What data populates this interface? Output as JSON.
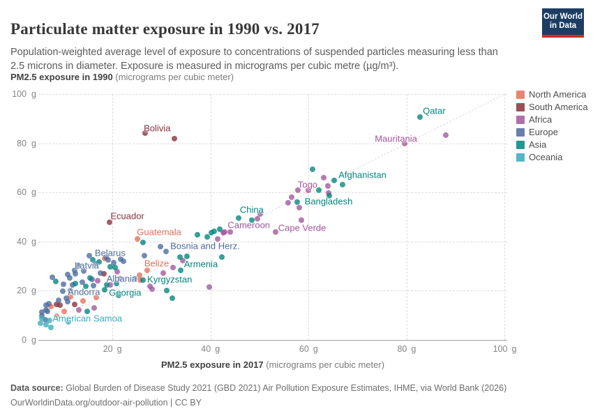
{
  "header": {
    "title": "Particulate matter exposure in 1990 vs. 2017",
    "subtitle": "Population-weighted average level of exposure to concentrations of suspended particles measuring less than 2.5 microns in diameter. Exposure is measured in micrograms per cubic metre (µg/m³).",
    "logo_line1": "Our World",
    "logo_line2": "in Data",
    "logo_bg_color": "#1d3d63",
    "logo_bar_color": "#d42b20"
  },
  "y_axis_title": {
    "bold": "PM2.5 exposure in 1990",
    "unit": " (micrograms per cubic meter)"
  },
  "x_axis_title": {
    "bold": "PM2.5 exposure in 2017",
    "unit": " (micrograms per cubic meter)"
  },
  "legend": [
    {
      "label": "North America",
      "color": "#E56E5A"
    },
    {
      "label": "South America",
      "color": "#883039"
    },
    {
      "label": "Africa",
      "color": "#A2559C"
    },
    {
      "label": "Europe",
      "color": "#4C6A9C"
    },
    {
      "label": "Asia",
      "color": "#00847E"
    },
    {
      "label": "Oceania",
      "color": "#38AABA"
    }
  ],
  "footer": {
    "source_label": "Data source:",
    "source_text": " Global Burden of Disease Study 2021 (GBD 2021) Air Pollution Exposure Estimates, IHME, via World Bank (2026)",
    "license": "OurWorldinData.org/outdoor-air-pollution | CC BY"
  },
  "chart_data": {
    "type": "scatter",
    "title": "Particulate matter exposure in 1990 vs. 2017",
    "xlabel": "PM2.5 exposure in 2017 (micrograms per cubic meter)",
    "ylabel": "PM2.5 exposure in 1990 (micrograms per cubic meter)",
    "x_domain": [
      4.9,
      100.5
    ],
    "y_domain": [
      0,
      100
    ],
    "x_ticks": [
      20,
      40,
      60,
      80,
      100
    ],
    "y_ticks": [
      0,
      20,
      40,
      60,
      80,
      100
    ],
    "tick_unit": "g",
    "grid": true,
    "diagonal_reference_line": true,
    "legend_position": "right",
    "series": [
      {
        "name": "North America",
        "color": "#E56E5A",
        "points": [
          [
            25.1,
            41.1
          ],
          [
            27.1,
            28.3
          ],
          [
            25.5,
            26.3
          ],
          [
            25.7,
            24.4
          ],
          [
            18.4,
            33.1
          ],
          [
            11.5,
            17.6
          ],
          [
            16.7,
            17.3
          ],
          [
            14,
            16
          ],
          [
            7.5,
            13.6
          ],
          [
            10.1,
            11.6
          ],
          [
            8.6,
            9.6
          ]
        ]
      },
      {
        "name": "South America",
        "color": "#883039",
        "points": [
          [
            26.7,
            84.1
          ],
          [
            32.7,
            81.9
          ],
          [
            19.4,
            47.9
          ],
          [
            18.3,
            26.9
          ],
          [
            8.6,
            14.4
          ],
          [
            9.3,
            14.2
          ],
          [
            12.3,
            14.4
          ]
        ]
      },
      {
        "name": "Africa",
        "color": "#A2559C",
        "points": [
          [
            79.6,
            79.9
          ],
          [
            88,
            83.3
          ],
          [
            63.1,
            66
          ],
          [
            64,
            62.6
          ],
          [
            57.8,
            60.9
          ],
          [
            60,
            60.9
          ],
          [
            64.1,
            59.8
          ],
          [
            56.5,
            58.1
          ],
          [
            55.8,
            55.8
          ],
          [
            58.1,
            53.8
          ],
          [
            58.6,
            48.7
          ],
          [
            50.2,
            51.3
          ],
          [
            49.6,
            49.3
          ],
          [
            53.3,
            43.9
          ],
          [
            42.9,
            43.9
          ],
          [
            44,
            43.9
          ],
          [
            42.6,
            43.6
          ],
          [
            41.4,
            41.1
          ],
          [
            34.3,
            32.3
          ],
          [
            32.4,
            29.5
          ],
          [
            30.4,
            27.2
          ],
          [
            27.7,
            21.8
          ],
          [
            28.1,
            20.7
          ],
          [
            39.7,
            21.5
          ],
          [
            21,
            27.8
          ],
          [
            21.6,
            24.9
          ],
          [
            17,
            24
          ],
          [
            19.5,
            22.5
          ],
          [
            16.3,
            13
          ],
          [
            13.2,
            12.2
          ]
        ]
      },
      {
        "name": "Europe",
        "color": "#4C6A9C",
        "points": [
          [
            30.9,
            36
          ],
          [
            29.8,
            38
          ],
          [
            26.5,
            34.3
          ],
          [
            15.3,
            34.2
          ],
          [
            16.6,
            30.9
          ],
          [
            18.7,
            33.7
          ],
          [
            19.1,
            32.6
          ],
          [
            20.3,
            31.4
          ],
          [
            21.7,
            32.9
          ],
          [
            22.3,
            31.9
          ],
          [
            17.6,
            27.2
          ],
          [
            12.3,
            28.3
          ],
          [
            12.5,
            26.9
          ],
          [
            10.9,
            26.6
          ],
          [
            11.3,
            25.2
          ],
          [
            15.9,
            24.6
          ],
          [
            13.9,
            23.5
          ],
          [
            10,
            22.7
          ],
          [
            11.9,
            22.4
          ],
          [
            16.2,
            22.1
          ],
          [
            24.5,
            24.9
          ],
          [
            11.4,
            20.1
          ],
          [
            7.7,
            25.5
          ],
          [
            9.9,
            19.8
          ],
          [
            10.6,
            17
          ],
          [
            10.9,
            15.6
          ],
          [
            9,
            16.1
          ],
          [
            7,
            14.7
          ],
          [
            6.5,
            14.1
          ],
          [
            6.8,
            11.6
          ],
          [
            5.6,
            11.3
          ],
          [
            6.4,
            12.2
          ],
          [
            5.6,
            9.9
          ],
          [
            6.3,
            8.2
          ],
          [
            13,
            30.2
          ],
          [
            14.2,
            28.1
          ]
        ]
      },
      {
        "name": "Asia",
        "color": "#00847E",
        "points": [
          [
            82.7,
            90.6
          ],
          [
            60.8,
            69.4
          ],
          [
            65.2,
            64.8
          ],
          [
            66.9,
            63.2
          ],
          [
            62.1,
            60.9
          ],
          [
            64.2,
            58.6
          ],
          [
            57.7,
            56.1
          ],
          [
            45.7,
            49.6
          ],
          [
            48.5,
            48.7
          ],
          [
            41.9,
            45
          ],
          [
            40.8,
            44.2
          ],
          [
            40.2,
            43.6
          ],
          [
            39.3,
            41.9
          ],
          [
            37.3,
            42.8
          ],
          [
            26.2,
            39.7
          ],
          [
            42.3,
            33.7
          ],
          [
            35.2,
            34
          ],
          [
            33.8,
            33.7
          ],
          [
            33.9,
            28.3
          ],
          [
            31.1,
            20.1
          ],
          [
            32.2,
            17
          ],
          [
            26.2,
            24.4
          ],
          [
            18.4,
            20.4
          ],
          [
            17.3,
            31.7
          ],
          [
            19.6,
            29.7
          ],
          [
            20.6,
            29.5
          ],
          [
            16,
            32.6
          ],
          [
            15.4,
            25.2
          ],
          [
            12.4,
            22.9
          ],
          [
            14.6,
            21.8
          ],
          [
            8.5,
            23.8
          ],
          [
            18.9,
            22.4
          ],
          [
            20.8,
            22.9
          ],
          [
            21.3,
            18.1
          ],
          [
            14.9,
            11.6
          ]
        ]
      },
      {
        "name": "Oceania",
        "color": "#38AABA",
        "points": [
          [
            5.6,
            8.8
          ],
          [
            5.3,
            6.8
          ],
          [
            6.5,
            6.2
          ],
          [
            11,
            7.4
          ],
          [
            7.2,
            8
          ],
          [
            7.5,
            5.1
          ]
        ]
      }
    ],
    "labels": [
      {
        "text": "Qatar",
        "region": "Asia",
        "x": 83.3,
        "y": 93.2
      },
      {
        "text": "Mauritania",
        "region": "Africa",
        "x": 73.5,
        "y": 81.9
      },
      {
        "text": "Bolivia",
        "region": "South America",
        "x": 26.4,
        "y": 86.1
      },
      {
        "text": "Ecuador",
        "region": "South America",
        "x": 19.6,
        "y": 50.4
      },
      {
        "text": "Guatemala",
        "region": "North America",
        "x": 25.0,
        "y": 43.9
      },
      {
        "text": "Afghanistan",
        "region": "Asia",
        "x": 66.1,
        "y": 67.1
      },
      {
        "text": "Togo",
        "region": "Africa",
        "x": 57.8,
        "y": 63.2
      },
      {
        "text": "Bangladesh",
        "region": "Asia",
        "x": 59.2,
        "y": 56.4
      },
      {
        "text": "China",
        "region": "Asia",
        "x": 46.0,
        "y": 53.0
      },
      {
        "text": "Cameroon",
        "region": "Africa",
        "x": 43.5,
        "y": 46.7
      },
      {
        "text": "Cape Verde",
        "region": "Africa",
        "x": 53.8,
        "y": 45.6
      },
      {
        "text": "Bosnia and Herz.",
        "region": "Europe",
        "x": 31.8,
        "y": 38.2
      },
      {
        "text": "Belarus",
        "region": "Europe",
        "x": 16.4,
        "y": 35.4
      },
      {
        "text": "Latvia",
        "region": "Europe",
        "x": 12.3,
        "y": 30.3
      },
      {
        "text": "Belize",
        "region": "North America",
        "x": 26.5,
        "y": 31.2
      },
      {
        "text": "Armenia",
        "region": "Asia",
        "x": 34.6,
        "y": 30.9
      },
      {
        "text": "Albania",
        "region": "Europe",
        "x": 18.8,
        "y": 24.9
      },
      {
        "text": "Kyrgyzstan",
        "region": "Asia",
        "x": 27.1,
        "y": 24.6
      },
      {
        "text": "Andorra",
        "region": "Europe",
        "x": 10.9,
        "y": 19.5
      },
      {
        "text": "Georgia",
        "region": "Asia",
        "x": 19.3,
        "y": 19.3
      },
      {
        "text": "American Samoa",
        "region": "Oceania",
        "x": 7.8,
        "y": 8.8
      }
    ]
  }
}
